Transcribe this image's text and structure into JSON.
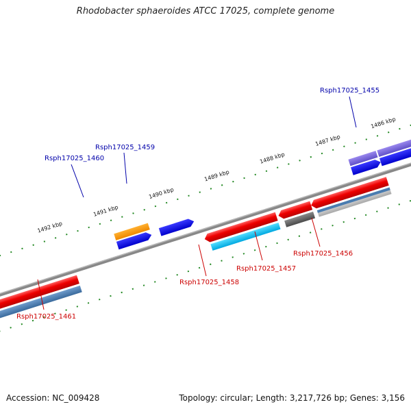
{
  "title": "Rhodobacter sphaeroides ATCC 17025, complete genome",
  "footer": {
    "accession": "Accession: NC_009428",
    "summary": "Topology: circular; Length: 3,217,726 bp; Genes: 3,156"
  },
  "colors": {
    "forward_label": "#0000aa",
    "reverse_label": "#cc0000",
    "tick": "#228822",
    "backbone": "#888888"
  },
  "kbp_ticks": [
    "1492 kbp",
    "1491 kbp",
    "1490 kbp",
    "1489 kbp",
    "1488 kbp",
    "1487 kbp",
    "1486 kbp"
  ],
  "genes": [
    {
      "id": "Rsph17025_1455",
      "strand": "forward"
    },
    {
      "id": "Rsph17025_1456",
      "strand": "reverse"
    },
    {
      "id": "Rsph17025_1457",
      "strand": "reverse"
    },
    {
      "id": "Rsph17025_1458",
      "strand": "reverse"
    },
    {
      "id": "Rsph17025_1459",
      "strand": "forward"
    },
    {
      "id": "Rsph17025_1460",
      "strand": "forward"
    },
    {
      "id": "Rsph17025_1461",
      "strand": "reverse"
    }
  ]
}
